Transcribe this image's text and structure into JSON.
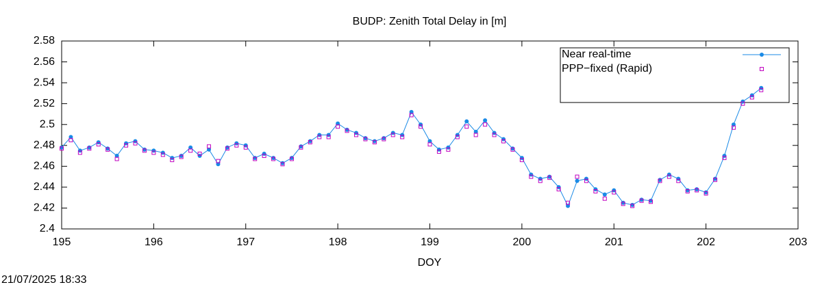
{
  "chart_data": {
    "type": "line",
    "title": "BUDP: Zenith Total Delay in [m]",
    "xlabel": "DOY",
    "timestamp": "21/07/2025 18:33",
    "x": [
      195.0,
      195.1,
      195.2,
      195.3,
      195.4,
      195.5,
      195.6,
      195.7,
      195.8,
      195.9,
      196.0,
      196.1,
      196.2,
      196.3,
      196.4,
      196.5,
      196.6,
      196.7,
      196.8,
      196.9,
      197.0,
      197.1,
      197.2,
      197.3,
      197.4,
      197.5,
      197.6,
      197.7,
      197.8,
      197.9,
      198.0,
      198.1,
      198.2,
      198.3,
      198.4,
      198.5,
      198.6,
      198.7,
      198.8,
      198.9,
      199.0,
      199.1,
      199.2,
      199.3,
      199.4,
      199.5,
      199.6,
      199.7,
      199.8,
      199.9,
      200.0,
      200.1,
      200.2,
      200.3,
      200.4,
      200.5,
      200.6,
      200.7,
      200.8,
      200.9,
      201.0,
      201.1,
      201.2,
      201.3,
      201.4,
      201.5,
      201.6,
      201.7,
      201.8,
      201.9,
      202.0,
      202.1,
      202.2,
      202.3,
      202.4,
      202.5,
      202.6
    ],
    "series": [
      {
        "name": "Near real-time",
        "color": "#1a8ae6",
        "style": "linespoints",
        "values": [
          2.478,
          2.488,
          2.475,
          2.478,
          2.483,
          2.477,
          2.47,
          2.482,
          2.484,
          2.476,
          2.475,
          2.473,
          2.468,
          2.47,
          2.478,
          2.47,
          2.476,
          2.462,
          2.478,
          2.482,
          2.48,
          2.468,
          2.472,
          2.468,
          2.463,
          2.468,
          2.479,
          2.484,
          2.49,
          2.49,
          2.501,
          2.495,
          2.492,
          2.487,
          2.484,
          2.487,
          2.492,
          2.49,
          2.512,
          2.5,
          2.484,
          2.476,
          2.478,
          2.49,
          2.503,
          2.493,
          2.504,
          2.492,
          2.486,
          2.477,
          2.468,
          2.452,
          2.448,
          2.45,
          2.44,
          2.422,
          2.446,
          2.448,
          2.438,
          2.433,
          2.437,
          2.425,
          2.423,
          2.428,
          2.427,
          2.447,
          2.452,
          2.448,
          2.437,
          2.438,
          2.435,
          2.448,
          2.47,
          2.5,
          2.522,
          2.528,
          2.535
        ]
      },
      {
        "name": "PPP−fixed (Rapid)",
        "color": "#c000c0",
        "style": "points",
        "values": [
          2.477,
          2.485,
          2.473,
          2.477,
          2.481,
          2.476,
          2.467,
          2.48,
          2.482,
          2.475,
          2.473,
          2.471,
          2.466,
          2.469,
          2.475,
          2.472,
          2.479,
          2.465,
          2.477,
          2.48,
          2.478,
          2.467,
          2.47,
          2.467,
          2.462,
          2.467,
          2.478,
          2.483,
          2.488,
          2.488,
          2.498,
          2.494,
          2.49,
          2.486,
          2.483,
          2.486,
          2.49,
          2.488,
          2.509,
          2.498,
          2.481,
          2.474,
          2.476,
          2.488,
          2.498,
          2.49,
          2.5,
          2.49,
          2.484,
          2.476,
          2.466,
          2.45,
          2.446,
          2.449,
          2.438,
          2.425,
          2.45,
          2.446,
          2.436,
          2.429,
          2.435,
          2.424,
          2.422,
          2.427,
          2.426,
          2.446,
          2.45,
          2.446,
          2.436,
          2.437,
          2.434,
          2.447,
          2.468,
          2.497,
          2.52,
          2.526,
          2.533
        ]
      }
    ],
    "xlim": [
      195,
      203
    ],
    "xticks": [
      195,
      196,
      197,
      198,
      199,
      200,
      201,
      202,
      203
    ],
    "ylim": [
      2.4,
      2.58
    ],
    "yticks": [
      2.4,
      2.42,
      2.44,
      2.46,
      2.48,
      2.5,
      2.52,
      2.54,
      2.56,
      2.58
    ],
    "grid": false,
    "legend": "upper right"
  }
}
